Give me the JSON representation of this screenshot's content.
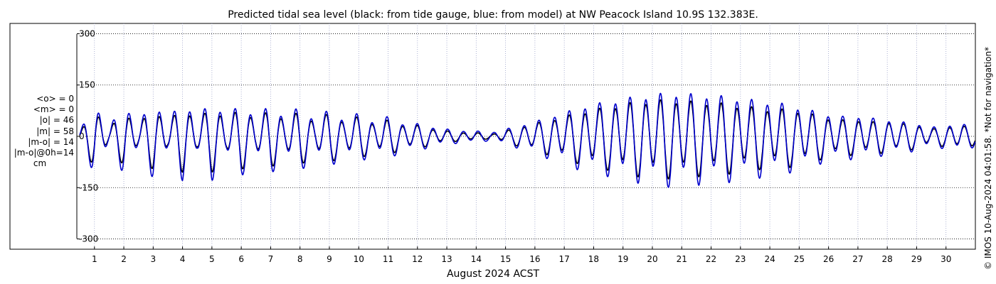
{
  "chart_data": {
    "type": "line",
    "title": "Predicted tidal sea level (black: from tide gauge, blue: from model) at NW Peacock Island 10.9S 132.383E.",
    "xlabel": "August 2024 ACST",
    "ylabel": "",
    "xlim": [
      0.4,
      31.0
    ],
    "ylim": [
      -330,
      330
    ],
    "yticks": [
      300,
      150,
      0,
      -150,
      -300
    ],
    "ytick_labels": [
      "300",
      "150",
      "0",
      "-150",
      "-300"
    ],
    "xticks": [
      1,
      2,
      3,
      4,
      5,
      6,
      7,
      8,
      9,
      10,
      11,
      12,
      13,
      14,
      15,
      16,
      17,
      18,
      19,
      20,
      21,
      22,
      23,
      24,
      25,
      26,
      27,
      28,
      29,
      30
    ],
    "xtick_labels": [
      "1",
      "2",
      "3",
      "4",
      "5",
      "6",
      "7",
      "8",
      "9",
      "10",
      "11",
      "12",
      "13",
      "14",
      "15",
      "16",
      "17",
      "18",
      "19",
      "20",
      "21",
      "22",
      "23",
      "24",
      "25",
      "26",
      "27",
      "28",
      "29",
      "30"
    ],
    "grid": true,
    "series": [
      {
        "color": "#000000",
        "x": [
          0.5,
          1.0,
          1.5,
          2.0,
          2.5,
          3.0,
          3.5,
          4.0,
          4.5,
          5.0,
          5.5,
          6.0,
          6.5,
          7.0,
          7.5,
          8.0,
          8.5,
          9.0,
          9.5,
          10.0,
          10.5,
          11.0,
          11.5,
          12.0,
          12.5,
          13.0,
          13.5,
          14.0,
          14.5,
          15.0,
          15.5,
          16.0,
          16.5,
          17.0,
          17.5,
          18.0,
          18.5,
          19.0,
          19.5,
          20.0,
          20.5,
          21.0,
          21.5,
          22.0,
          22.5,
          23.0,
          23.5,
          24.0,
          24.5,
          25.0,
          25.5,
          26.0,
          26.5,
          27.0,
          27.5,
          28.0,
          28.5,
          29.0,
          29.5,
          30.0,
          30.5,
          31.0
        ],
        "amplitude": [
          10,
          75,
          20,
          70,
          30,
          80,
          35,
          85,
          40,
          85,
          45,
          80,
          45,
          75,
          45,
          70,
          40,
          65,
          40,
          55,
          35,
          45,
          30,
          30,
          20,
          15,
          10,
          10,
          5,
          15,
          25,
          35,
          45,
          55,
          65,
          75,
          80,
          90,
          95,
          100,
          100,
          100,
          95,
          95,
          90,
          85,
          80,
          75,
          75,
          70,
          60,
          50,
          45,
          45,
          40,
          40,
          35,
          30,
          20,
          25,
          30,
          20
        ]
      },
      {
        "color": "#0000cc",
        "x": [
          0.5,
          1.0,
          1.5,
          2.0,
          2.5,
          3.0,
          3.5,
          4.0,
          4.5,
          5.0,
          5.5,
          6.0,
          6.5,
          7.0,
          7.5,
          8.0,
          8.5,
          9.0,
          9.5,
          10.0,
          10.5,
          11.0,
          11.5,
          12.0,
          12.5,
          13.0,
          13.5,
          14.0,
          14.5,
          15.0,
          15.5,
          16.0,
          16.5,
          17.0,
          17.5,
          18.0,
          18.5,
          19.0,
          19.5,
          20.0,
          20.5,
          21.0,
          21.5,
          22.0,
          22.5,
          23.0,
          23.5,
          24.0,
          24.5,
          25.0,
          25.5,
          26.0,
          26.5,
          27.0,
          27.5,
          28.0,
          28.5,
          29.0,
          29.5,
          30.0,
          30.5,
          31.0
        ],
        "amplitude": [
          15,
          90,
          25,
          90,
          35,
          100,
          40,
          105,
          45,
          105,
          50,
          95,
          50,
          90,
          50,
          85,
          45,
          75,
          45,
          65,
          40,
          55,
          35,
          35,
          25,
          20,
          15,
          15,
          10,
          20,
          30,
          40,
          55,
          65,
          80,
          90,
          95,
          105,
          110,
          115,
          120,
          120,
          115,
          115,
          110,
          105,
          100,
          95,
          90,
          80,
          70,
          60,
          55,
          55,
          50,
          45,
          40,
          35,
          25,
          30,
          35,
          25
        ]
      }
    ],
    "stats": {
      "mean_o": "<o> = 0",
      "mean_m": "<m> = 0",
      "abs_o": "|o| = 46",
      "abs_m": "|m| = 58",
      "abs_mo": "|m-o| = 14",
      "abs_mo0h": "|m-o|@0h=14",
      "unit": "cm"
    },
    "credit": "© IMOS 10-Aug-2024 04:01:58. *Not for navigation*"
  }
}
